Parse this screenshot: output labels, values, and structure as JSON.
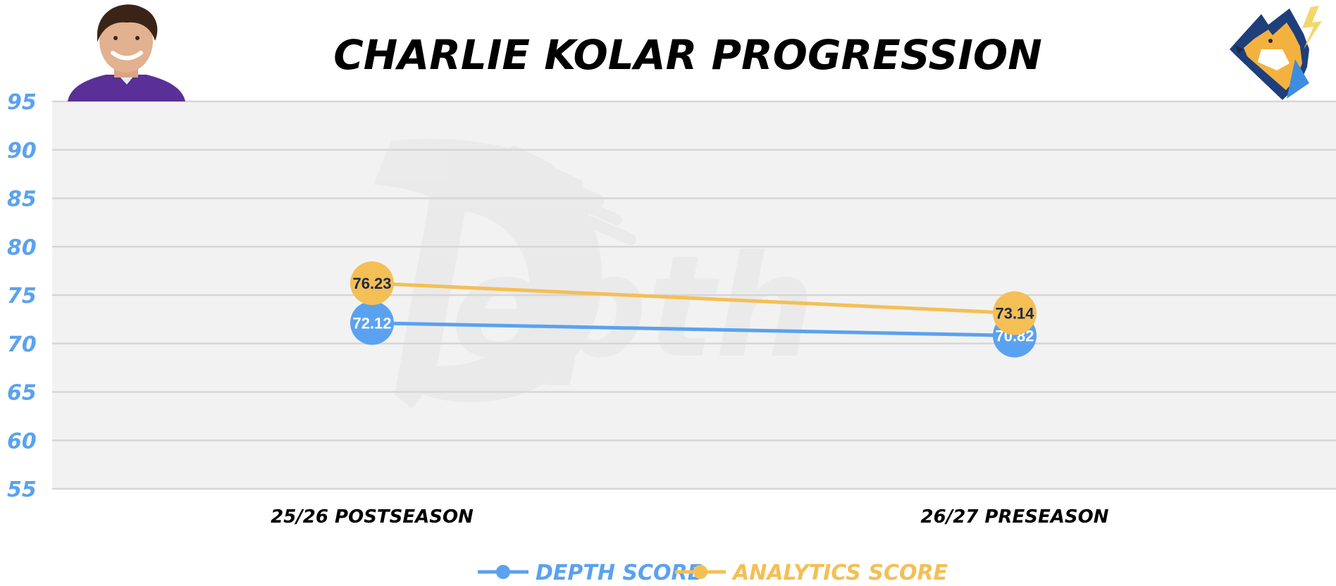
{
  "chart_data": {
    "type": "line",
    "title": "CHARLIE KOLAR PROGRESSION",
    "categories": [
      "25/26 POSTSEASON",
      "26/27 PRESEASON"
    ],
    "series": [
      {
        "name": "DEPTH SCORE",
        "values": [
          72.12,
          70.82
        ],
        "labels": [
          "72.12",
          "70.82"
        ],
        "color": "#5aa2ef",
        "label_color": "#ffffff"
      },
      {
        "name": "ANALYTICS SCORE",
        "values": [
          76.23,
          73.14
        ],
        "labels": [
          "76.23",
          "73.14"
        ],
        "color": "#f4bf55",
        "label_color": "#1c2a4a"
      }
    ],
    "ylim": [
      55,
      95
    ],
    "yticks": [
      95,
      90,
      85,
      80,
      75,
      70,
      65,
      60,
      55
    ],
    "ytick_labels": [
      "95",
      "90",
      "85",
      "80",
      "75",
      "70",
      "65",
      "60",
      "55"
    ],
    "grid": true,
    "legend": "bottom-center",
    "colors": {
      "plot_bg": "#f2f2f2",
      "grid": "#d6d6d6",
      "ytick": "#5aa2ef"
    }
  },
  "watermark": {
    "icon": "football-d-logo-watermark"
  },
  "images": {
    "player": "player-headshot-icon",
    "team": "wolf-mascot-logo-icon"
  }
}
